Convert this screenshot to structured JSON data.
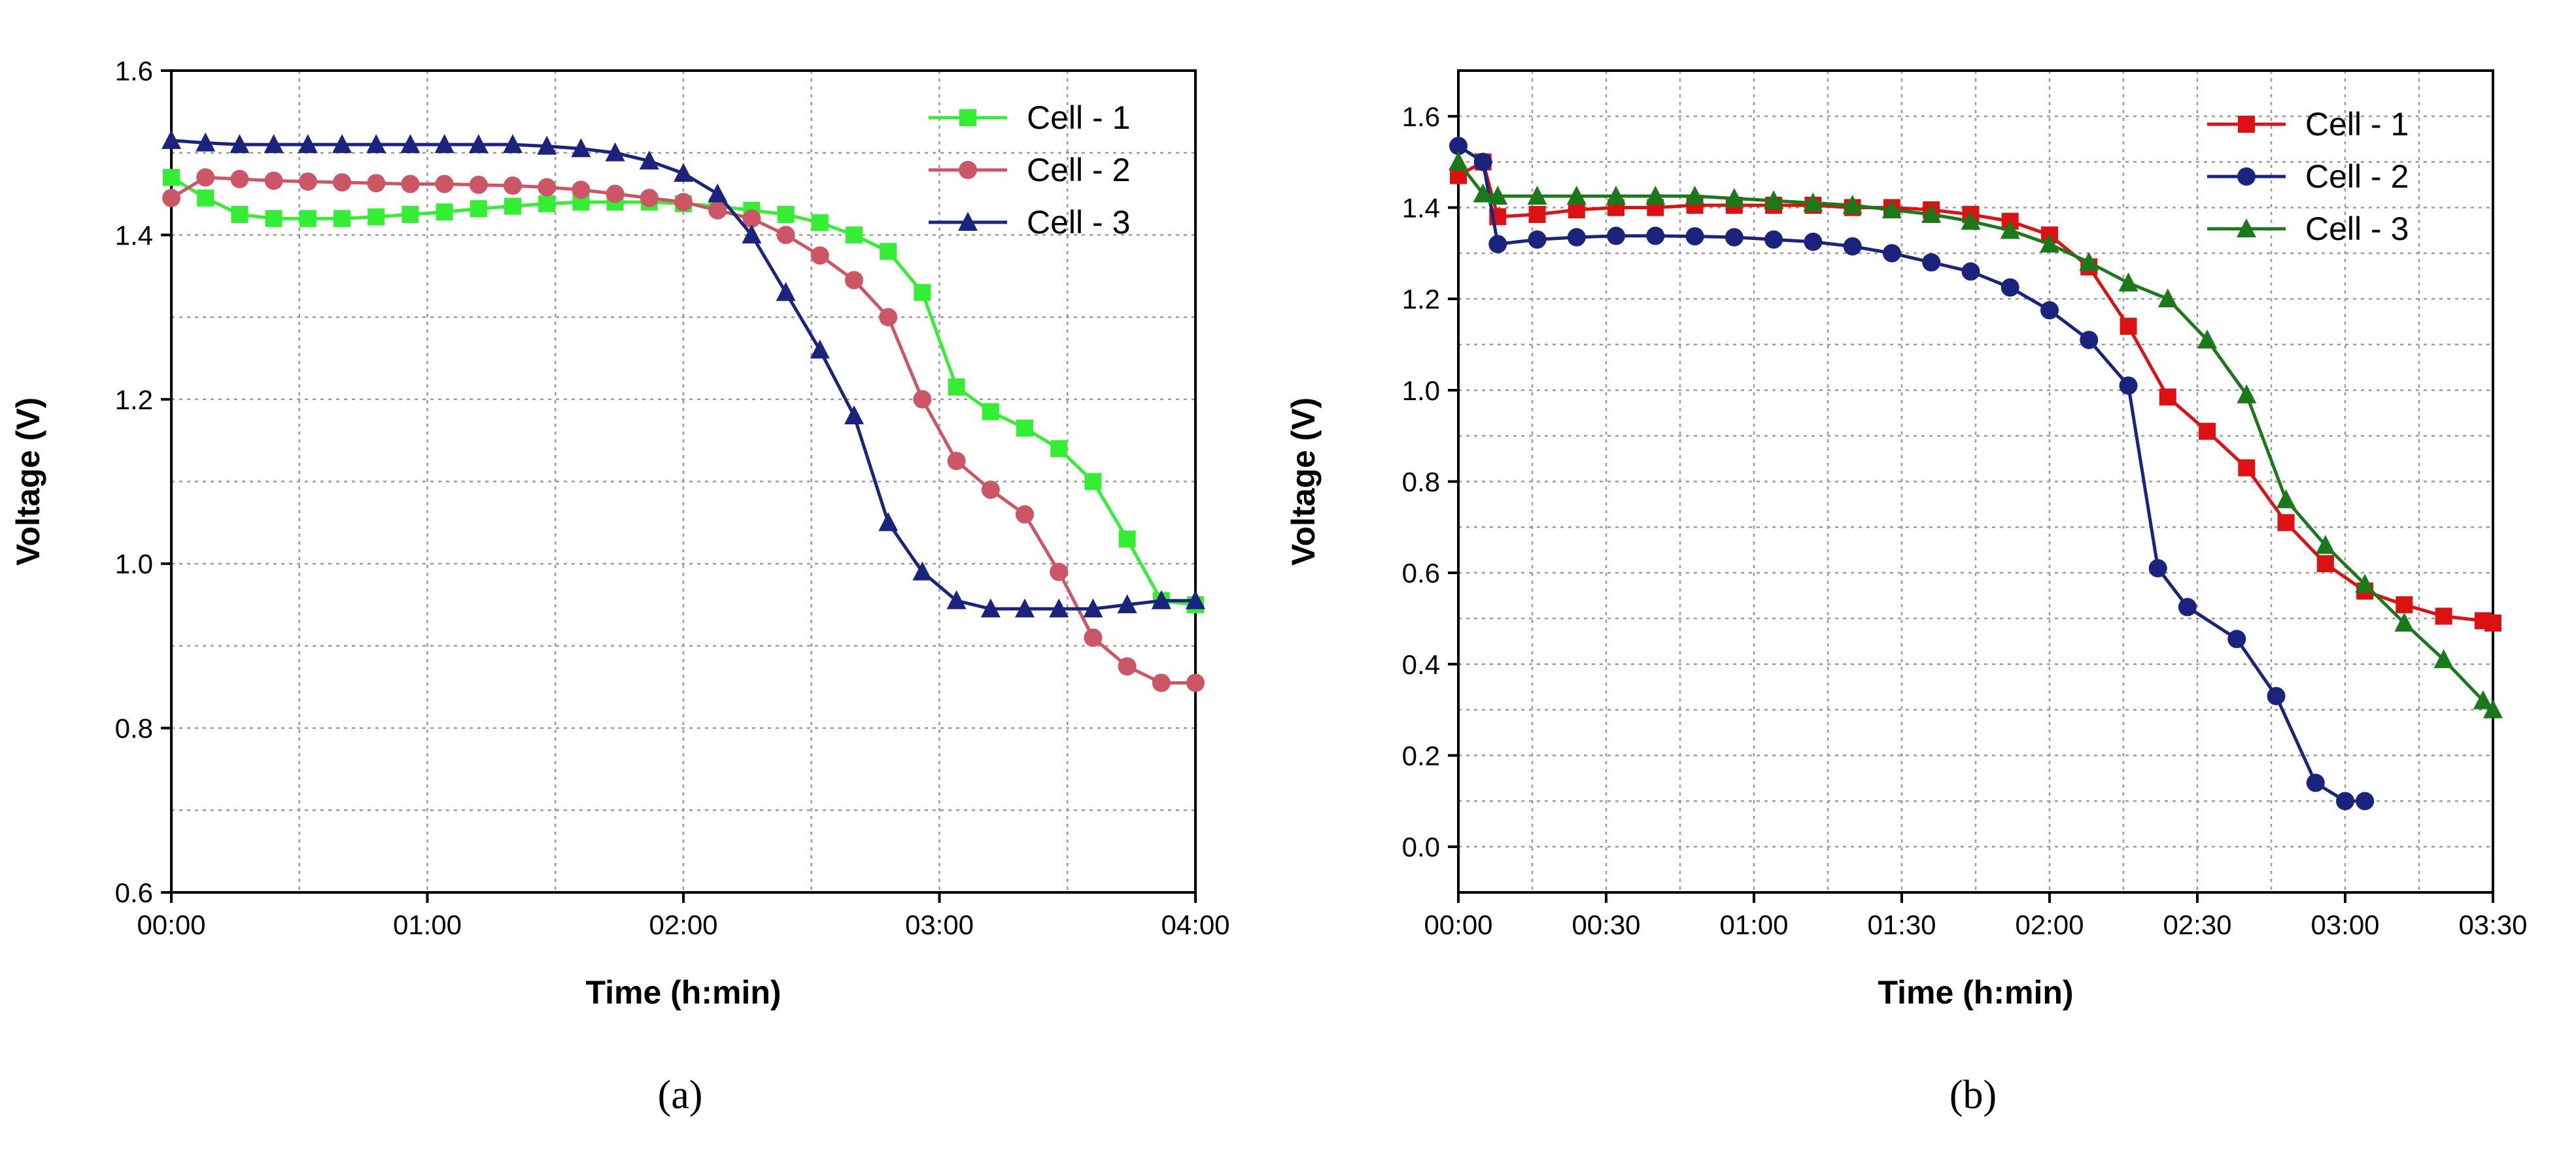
{
  "chart_data": [
    {
      "type": "line",
      "panel_label": "(a)",
      "xlabel": "Time (h:min)",
      "ylabel": "Voltage (V)",
      "xlim": [
        0,
        240
      ],
      "ylim": [
        0.6,
        1.6
      ],
      "xticks": [
        0,
        60,
        120,
        180,
        240
      ],
      "xtick_labels": [
        "00:00",
        "01:00",
        "02:00",
        "03:00",
        "04:00"
      ],
      "yticks": [
        0.6,
        0.8,
        1.0,
        1.2,
        1.4,
        1.6
      ],
      "ytick_labels": [
        "0.6",
        "0.8",
        "1.0",
        "1.2",
        "1.4",
        "1.6"
      ],
      "grid": true,
      "legend_position": "top-right",
      "series": [
        {
          "name": "Cell - 1",
          "color": "#33ee33",
          "marker": "square",
          "x": [
            0,
            8,
            16,
            24,
            32,
            40,
            48,
            56,
            64,
            72,
            80,
            88,
            96,
            104,
            112,
            120,
            128,
            136,
            144,
            152,
            160,
            168,
            176,
            184,
            192,
            200,
            208,
            216,
            224,
            232,
            240
          ],
          "y": [
            1.47,
            1.445,
            1.425,
            1.42,
            1.42,
            1.42,
            1.422,
            1.425,
            1.428,
            1.432,
            1.435,
            1.438,
            1.44,
            1.44,
            1.44,
            1.438,
            1.435,
            1.43,
            1.425,
            1.415,
            1.4,
            1.38,
            1.33,
            1.215,
            1.185,
            1.165,
            1.14,
            1.1,
            1.03,
            0.955,
            0.95
          ]
        },
        {
          "name": "Cell - 2",
          "color": "#cc5566",
          "marker": "circle",
          "x": [
            0,
            8,
            16,
            24,
            32,
            40,
            48,
            56,
            64,
            72,
            80,
            88,
            96,
            104,
            112,
            120,
            128,
            136,
            144,
            152,
            160,
            168,
            176,
            184,
            192,
            200,
            208,
            216,
            224,
            232,
            240
          ],
          "y": [
            1.445,
            1.47,
            1.468,
            1.466,
            1.465,
            1.464,
            1.463,
            1.462,
            1.462,
            1.461,
            1.46,
            1.458,
            1.455,
            1.45,
            1.445,
            1.44,
            1.43,
            1.42,
            1.4,
            1.375,
            1.345,
            1.3,
            1.2,
            1.125,
            1.09,
            1.06,
            0.99,
            0.91,
            0.875,
            0.855,
            0.855
          ]
        },
        {
          "name": "Cell - 3",
          "color": "#1a237e",
          "marker": "triangle",
          "x": [
            0,
            8,
            16,
            24,
            32,
            40,
            48,
            56,
            64,
            72,
            80,
            88,
            96,
            104,
            112,
            120,
            128,
            136,
            144,
            152,
            160,
            168,
            176,
            184,
            192,
            200,
            208,
            216,
            224,
            232,
            240
          ],
          "y": [
            1.515,
            1.512,
            1.51,
            1.51,
            1.51,
            1.51,
            1.51,
            1.51,
            1.51,
            1.51,
            1.51,
            1.508,
            1.505,
            1.5,
            1.49,
            1.475,
            1.45,
            1.4,
            1.33,
            1.26,
            1.18,
            1.05,
            0.99,
            0.955,
            0.945,
            0.945,
            0.945,
            0.945,
            0.95,
            0.955,
            0.955
          ]
        }
      ]
    },
    {
      "type": "line",
      "panel_label": "(b)",
      "xlabel": "Time (h:min)",
      "ylabel": "Voltage (V)",
      "xlim": [
        0,
        210
      ],
      "ylim": [
        -0.1,
        1.7
      ],
      "xticks": [
        0,
        30,
        60,
        90,
        120,
        150,
        180,
        210
      ],
      "xtick_labels": [
        "00:00",
        "00:30",
        "01:00",
        "01:30",
        "02:00",
        "02:30",
        "03:00",
        "03:30"
      ],
      "yticks": [
        0.0,
        0.2,
        0.4,
        0.6,
        0.8,
        1.0,
        1.2,
        1.4,
        1.6
      ],
      "ytick_labels": [
        "0.0",
        "0.2",
        "0.4",
        "0.6",
        "0.8",
        "1.0",
        "1.2",
        "1.4",
        "1.6"
      ],
      "grid": true,
      "legend_position": "top-right",
      "series": [
        {
          "name": "Cell - 1",
          "color": "#dd1111",
          "marker": "square",
          "x": [
            0,
            5,
            8,
            16,
            24,
            32,
            40,
            48,
            56,
            64,
            72,
            80,
            88,
            96,
            104,
            112,
            120,
            128,
            136,
            144,
            152,
            160,
            168,
            176,
            184,
            192,
            200,
            208,
            210
          ],
          "y": [
            1.47,
            1.5,
            1.38,
            1.385,
            1.395,
            1.4,
            1.4,
            1.405,
            1.405,
            1.405,
            1.405,
            1.4,
            1.4,
            1.395,
            1.385,
            1.37,
            1.34,
            1.27,
            1.14,
            0.985,
            0.91,
            0.83,
            0.71,
            0.62,
            0.56,
            0.53,
            0.505,
            0.495,
            0.49
          ]
        },
        {
          "name": "Cell - 2",
          "color": "#1a237e",
          "marker": "circle",
          "x": [
            0,
            5,
            8,
            16,
            24,
            32,
            40,
            48,
            56,
            64,
            72,
            80,
            88,
            96,
            104,
            112,
            120,
            128,
            136,
            142,
            148,
            158,
            166,
            174,
            180,
            184
          ],
          "y": [
            1.535,
            1.5,
            1.32,
            1.33,
            1.335,
            1.338,
            1.338,
            1.337,
            1.335,
            1.33,
            1.325,
            1.315,
            1.3,
            1.28,
            1.26,
            1.225,
            1.175,
            1.11,
            1.01,
            0.61,
            0.525,
            0.455,
            0.33,
            0.14,
            0.1,
            0.1
          ]
        },
        {
          "name": "Cell - 3",
          "color": "#1a7a1a",
          "marker": "triangle",
          "x": [
            0,
            5,
            8,
            16,
            24,
            32,
            40,
            48,
            56,
            64,
            72,
            80,
            88,
            96,
            104,
            112,
            120,
            128,
            136,
            144,
            152,
            160,
            168,
            176,
            184,
            192,
            200,
            208,
            210
          ],
          "y": [
            1.5,
            1.43,
            1.425,
            1.425,
            1.425,
            1.425,
            1.425,
            1.425,
            1.42,
            1.415,
            1.41,
            1.405,
            1.395,
            1.385,
            1.37,
            1.35,
            1.32,
            1.28,
            1.235,
            1.2,
            1.11,
            0.99,
            0.76,
            0.66,
            0.575,
            0.49,
            0.41,
            0.32,
            0.3
          ]
        }
      ]
    }
  ]
}
